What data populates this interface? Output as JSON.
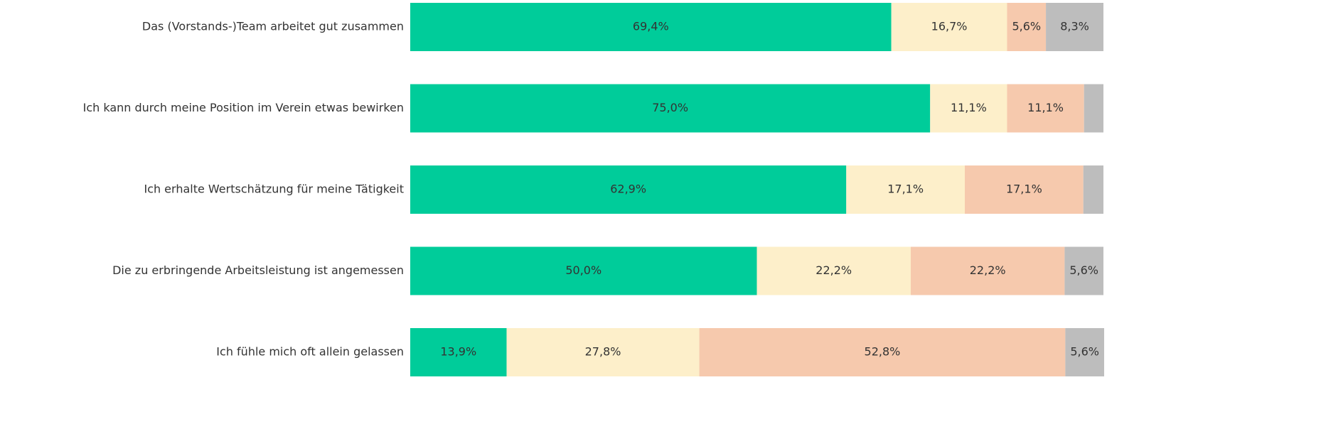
{
  "chart_data": {
    "type": "stacked-bar-horizontal",
    "categories": [
      "Das (Vorstands-)Team arbeitet gut zusammen",
      "Ich kann durch meine Position im Verein etwas bewirken",
      "Ich erhalte Wertschätzung für meine Tätigkeit",
      "Die zu erbringende Arbeitsleistung ist angemessen",
      "Ich fühle mich oft allein gelassen"
    ],
    "xlim": [
      0,
      100
    ],
    "series": [
      {
        "color": "#00cc9a",
        "values": [
          69.4,
          75.0,
          62.9,
          50.0,
          13.9
        ],
        "value_labels": [
          "69,4%",
          "75,0%",
          "62,9%",
          "50,0%",
          "13,9%"
        ]
      },
      {
        "color": "#fdefca",
        "values": [
          16.7,
          11.1,
          17.1,
          22.2,
          27.8
        ],
        "value_labels": [
          "16,7%",
          "11,1%",
          "17,1%",
          "22,2%",
          "27,8%"
        ]
      },
      {
        "color": "#f6c9ad",
        "values": [
          5.6,
          11.1,
          17.1,
          22.2,
          52.8
        ],
        "value_labels": [
          "5,6%",
          "11,1%",
          "17,1%",
          "22,2%",
          "52,8%"
        ]
      },
      {
        "color": "#bdbdbd",
        "values": [
          8.3,
          2.8,
          2.9,
          5.6,
          5.6
        ],
        "value_labels": [
          "8,3%",
          null,
          null,
          "5,6%",
          "5,6%"
        ]
      }
    ]
  }
}
